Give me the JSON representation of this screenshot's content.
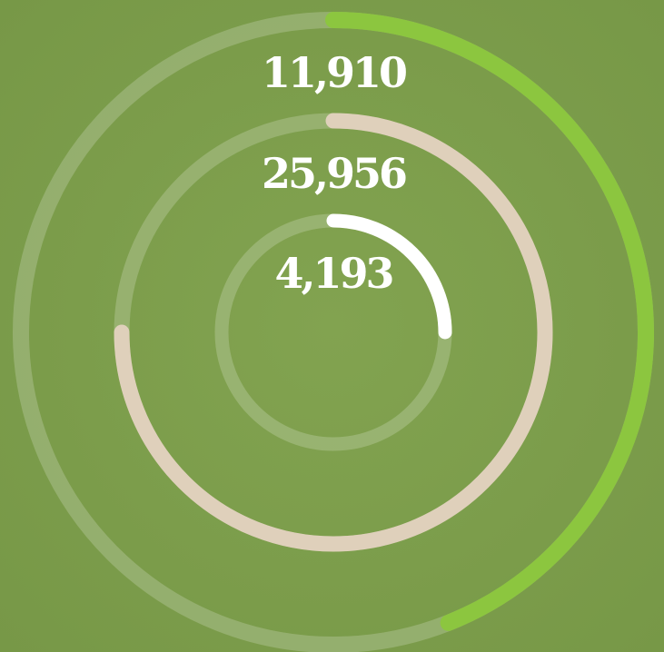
{
  "chart_data": {
    "type": "radial",
    "rings": [
      {
        "value": {
          "value": 11910,
          "label": "11,910"
        },
        "progress": 44,
        "color": "#8cc63f"
      },
      {
        "value": {
          "value": 25956,
          "label": "25,956"
        },
        "progress": 75,
        "color": "#dfd0bb"
      },
      {
        "value": {
          "value": 4193,
          "label": "4,193"
        },
        "progress": 25,
        "color": "#ffffff"
      }
    ],
    "progress_max": 100
  }
}
